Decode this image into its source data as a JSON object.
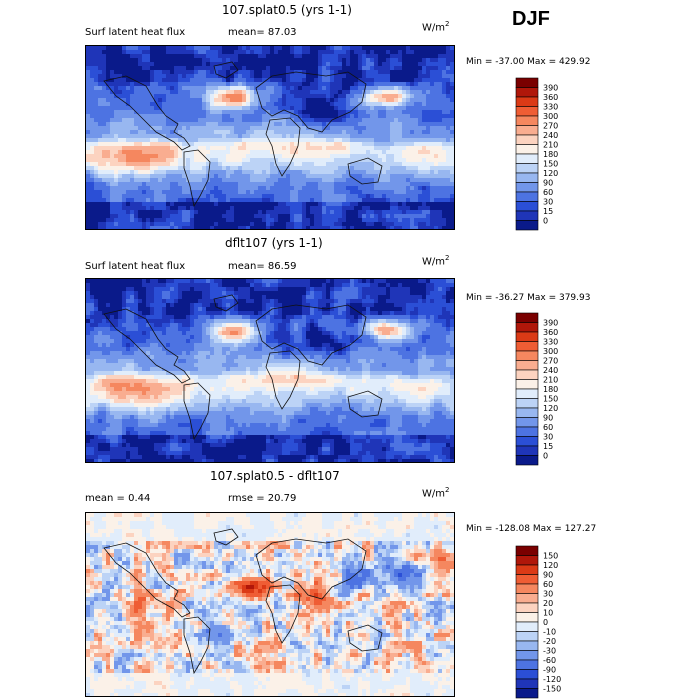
{
  "season": "DJF",
  "units": {
    "base": "W/m",
    "exp": "2"
  },
  "chart_data": [
    {
      "type": "heatmap",
      "title": "107.splat0.5 (yrs 1-1)",
      "field_label": "Surf latent heat flux",
      "stat_text": "mean=  87.03",
      "minmax_text": "Min = -37.00 Max = 429.92",
      "min": -37.0,
      "max": 429.92,
      "mean": 87.03,
      "levels": [
        "390",
        "360",
        "330",
        "300",
        "270",
        "240",
        "210",
        "180",
        "150",
        "120",
        "90",
        "60",
        "30",
        "15",
        "0"
      ],
      "colors": [
        "#7a0000",
        "#b0170a",
        "#db3a16",
        "#ef5d34",
        "#f5875f",
        "#f9ad90",
        "#fcd3c0",
        "#fbf1e8",
        "#e1edfb",
        "#bcd3f6",
        "#98b7f0",
        "#7296ea",
        "#4d73e2",
        "#2b4fd6",
        "#1f35b8",
        "#0a1a8a"
      ]
    },
    {
      "type": "heatmap",
      "title": "dflt107 (yrs 1-1)",
      "field_label": "Surf latent heat flux",
      "stat_text": "mean=  86.59",
      "minmax_text": "Min = -36.27 Max = 379.93",
      "min": -36.27,
      "max": 379.93,
      "mean": 86.59,
      "levels": [
        "390",
        "360",
        "330",
        "300",
        "270",
        "240",
        "210",
        "180",
        "150",
        "120",
        "90",
        "60",
        "30",
        "15",
        "0"
      ],
      "colors": [
        "#7a0000",
        "#b0170a",
        "#db3a16",
        "#ef5d34",
        "#f5875f",
        "#f9ad90",
        "#fcd3c0",
        "#fbf1e8",
        "#e1edfb",
        "#bcd3f6",
        "#98b7f0",
        "#7296ea",
        "#4d73e2",
        "#2b4fd6",
        "#1f35b8",
        "#0a1a8a"
      ]
    },
    {
      "type": "heatmap",
      "title": "107.splat0.5 - dflt107",
      "mean_text": "mean =    0.44",
      "rmse_text": "rmse =  20.79",
      "minmax_text": "Min = -128.08 Max = 127.27",
      "min": -128.08,
      "max": 127.27,
      "mean": 0.44,
      "rmse": 20.79,
      "levels": [
        "150",
        "120",
        "90",
        "60",
        "30",
        "20",
        "10",
        "0",
        "-10",
        "-20",
        "-30",
        "-60",
        "-90",
        "-120",
        "-150"
      ],
      "colors": [
        "#7a0000",
        "#b0170a",
        "#db3a16",
        "#ef5d34",
        "#f5875f",
        "#f9ad90",
        "#fcd3c0",
        "#fbf1e8",
        "#e1edfb",
        "#bcd3f6",
        "#98b7f0",
        "#7296ea",
        "#4d73e2",
        "#2b4fd6",
        "#1f35b8",
        "#0a1a8a"
      ]
    }
  ]
}
